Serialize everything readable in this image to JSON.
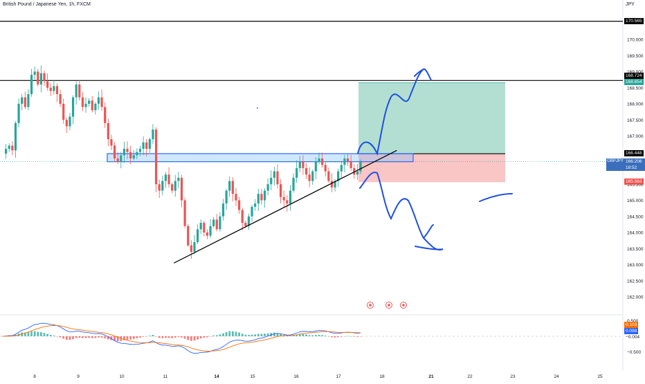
{
  "header": {
    "title": "British Pound / Japanese Yen, 1h, FXCM",
    "currency": "JPY"
  },
  "colors": {
    "up": "#26a69a",
    "down": "#ef5350",
    "black": "#000000",
    "zone": "#2962ff",
    "pencil": "#1e4fe0",
    "profit_fill": "#b2dfd2",
    "loss_fill": "#f9c5c5",
    "macd_line": "#2962ff",
    "signal_line": "#ff6d00"
  },
  "price_tags": {
    "level_top": "170.565",
    "level_high": "168.724",
    "target": "168.654",
    "entry": "166.448",
    "symbol": "GBPJPY",
    "last": "166.206",
    "countdown": "18:52",
    "stop": "165.563",
    "macd_a": "0.103",
    "macd_b": "0.098",
    "macd_c": "−0.004"
  },
  "chart_data": {
    "type": "candlestick",
    "symbol": "GBPJPY",
    "timeframe": "1h",
    "ylim": [
      161.5,
      171
    ],
    "y_ticks": [
      "170.000",
      "169.500",
      "169.000",
      "168.500",
      "168.000",
      "167.500",
      "167.000",
      "166.500",
      "166.000",
      "165.500",
      "165.000",
      "164.500",
      "164.000",
      "163.500",
      "163.000",
      "162.500",
      "162.000"
    ],
    "x_ticks": [
      {
        "label": "8",
        "bold": false
      },
      {
        "label": "9",
        "bold": false
      },
      {
        "label": "10",
        "bold": false
      },
      {
        "label": "11",
        "bold": false
      },
      {
        "label": "14",
        "bold": true
      },
      {
        "label": "15",
        "bold": false
      },
      {
        "label": "16",
        "bold": false
      },
      {
        "label": "17",
        "bold": false
      },
      {
        "label": "18",
        "bold": false
      },
      {
        "label": "21",
        "bold": true
      },
      {
        "label": "22",
        "bold": false
      },
      {
        "label": "23",
        "bold": false
      },
      {
        "label": "24",
        "bold": false
      },
      {
        "label": "25",
        "bold": false
      }
    ],
    "price_path": [
      166.45,
      166.6,
      166.7,
      166.55,
      167.4,
      168.0,
      168.2,
      167.9,
      168.3,
      168.9,
      169.0,
      168.6,
      168.95,
      168.7,
      168.5,
      168.4,
      168.55,
      168.3,
      168.0,
      167.5,
      167.3,
      167.6,
      168.2,
      168.6,
      168.2,
      167.9,
      168.0,
      168.1,
      167.8,
      168.0,
      168.2,
      167.9,
      167.4,
      166.9,
      166.7,
      166.3,
      166.2,
      166.4,
      166.6,
      166.5,
      166.3,
      166.4,
      166.5,
      166.6,
      166.8,
      166.6,
      166.9,
      167.2,
      165.5,
      165.3,
      165.6,
      165.8,
      165.5,
      165.3,
      165.6,
      165.7,
      165.0,
      164.2,
      163.6,
      163.4,
      163.7,
      164.1,
      164.3,
      164.0,
      163.9,
      164.2,
      164.4,
      164.1,
      164.5,
      164.9,
      165.3,
      165.6,
      165.2,
      165.0,
      164.7,
      164.3,
      164.2,
      164.5,
      164.8,
      164.9,
      165.2,
      165.0,
      165.3,
      165.5,
      165.7,
      165.9,
      165.5,
      165.1,
      165.0,
      164.9,
      165.3,
      165.7,
      166.0,
      166.2,
      166.0,
      165.8,
      165.6,
      165.9,
      166.2,
      166.3,
      166.1,
      165.9,
      165.6,
      165.4,
      165.6,
      165.9,
      166.1,
      166.3,
      166.2,
      166.0,
      165.8,
      165.9,
      166.2
    ],
    "horizontal_levels": [
      170.565,
      168.724,
      166.448
    ],
    "resistance_zone": [
      166.2,
      166.45
    ],
    "trendline": {
      "from": [
        11.5,
        163.05
      ],
      "to": [
        18.9,
        166.55
      ]
    },
    "position": {
      "entry": 166.448,
      "target": 168.654,
      "stop": 165.563
    },
    "macd": {
      "ylim": [
        -0.6,
        0.6
      ],
      "y_ticks": [
        "0.500",
        "−0.500"
      ]
    }
  }
}
